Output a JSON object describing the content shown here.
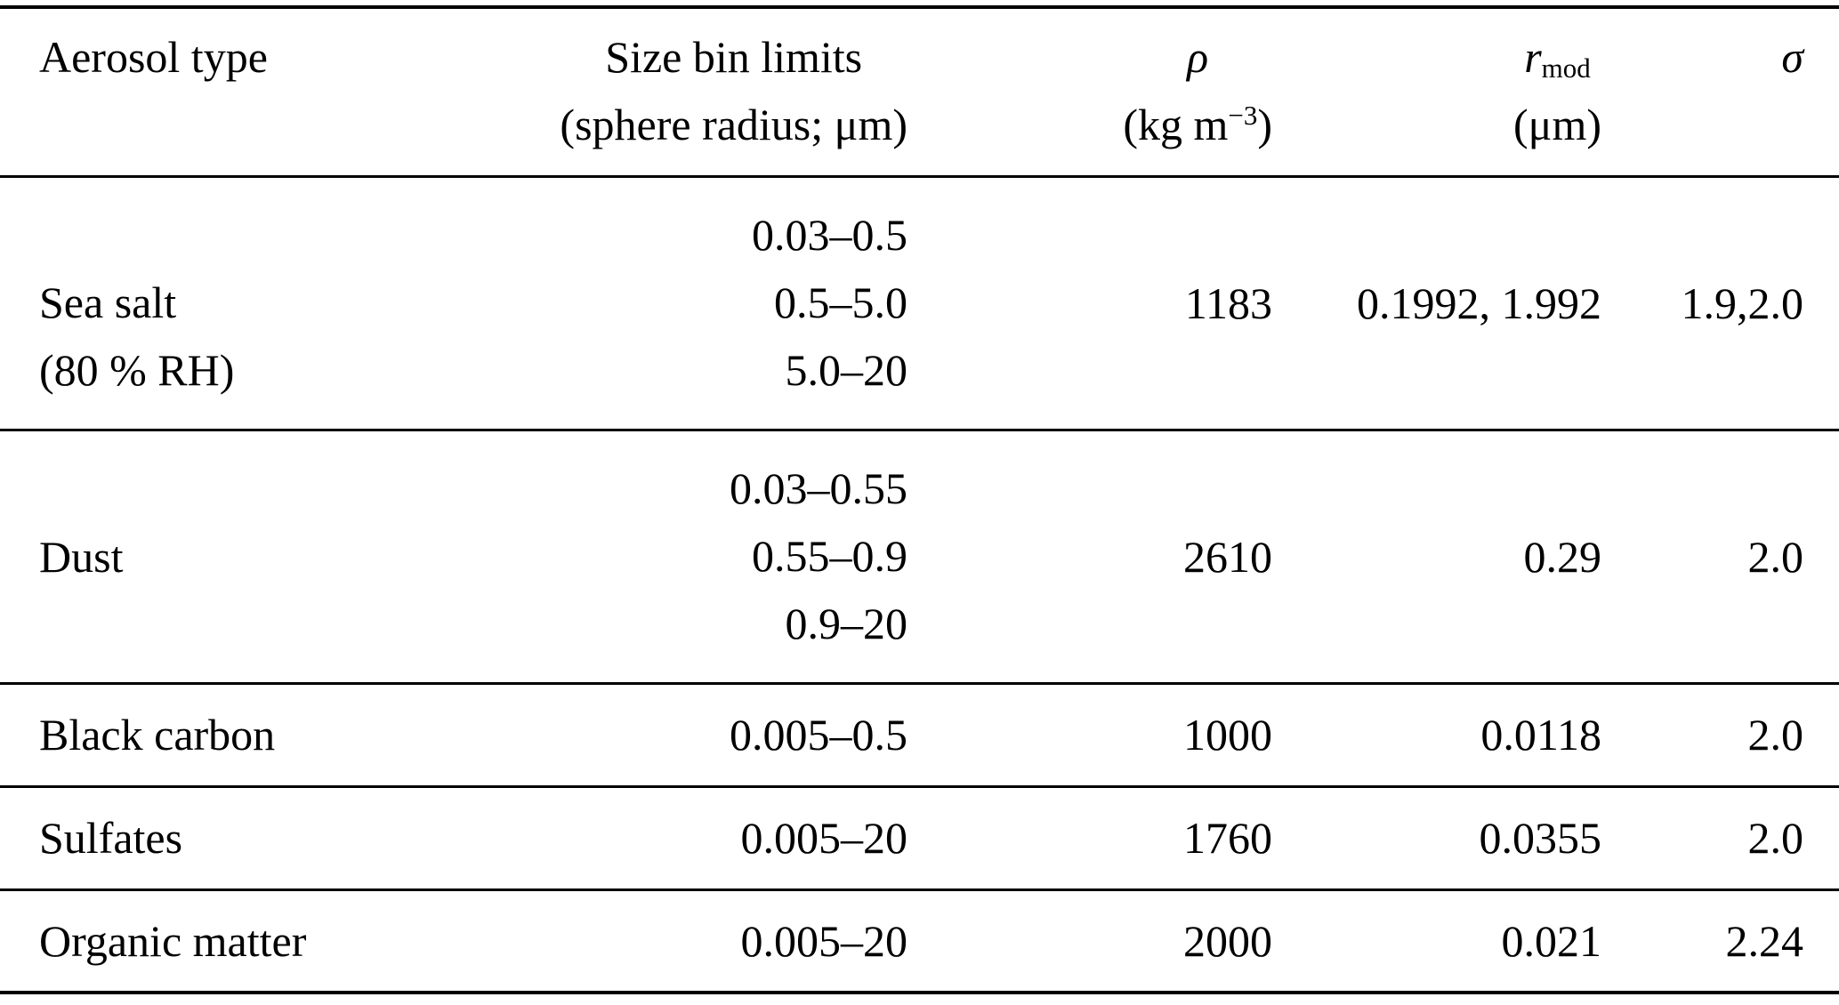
{
  "colors": {
    "background": "#ffffff",
    "text": "#000000",
    "rule": "#000000"
  },
  "table": {
    "header": {
      "aerosol_type": "Aerosol type",
      "size_bin_line1": "Size bin limits",
      "size_bin_line2": "(sphere radius; μm)",
      "rho_symbol": "ρ",
      "rho_unit_open": "(kg m",
      "rho_unit_exp": "−3",
      "rho_unit_close": ")",
      "rmod_base": "r",
      "rmod_sub": "mod",
      "rmod_unit": "(μm)",
      "sigma_symbol": "σ"
    },
    "rows": [
      {
        "name_lines": [
          "Sea salt",
          "(80 % RH)"
        ],
        "bins": [
          "0.03–0.5",
          "0.5–5.0",
          "5.0–20"
        ],
        "rho": "1183",
        "r_mod": "0.1992, 1.992",
        "sigma": "1.9,2.0"
      },
      {
        "name_lines": [
          "Dust"
        ],
        "bins": [
          "0.03–0.55",
          "0.55–0.9",
          "0.9–20"
        ],
        "rho": "2610",
        "r_mod": "0.29",
        "sigma": "2.0"
      },
      {
        "name_lines": [
          "Black carbon"
        ],
        "bins": [
          "0.005–0.5"
        ],
        "rho": "1000",
        "r_mod": "0.0118",
        "sigma": "2.0"
      },
      {
        "name_lines": [
          "Sulfates"
        ],
        "bins": [
          "0.005–20"
        ],
        "rho": "1760",
        "r_mod": "0.0355",
        "sigma": "2.0"
      },
      {
        "name_lines": [
          "Organic matter"
        ],
        "bins": [
          "0.005–20"
        ],
        "rho": "2000",
        "r_mod": "0.021",
        "sigma": "2.24"
      }
    ]
  }
}
